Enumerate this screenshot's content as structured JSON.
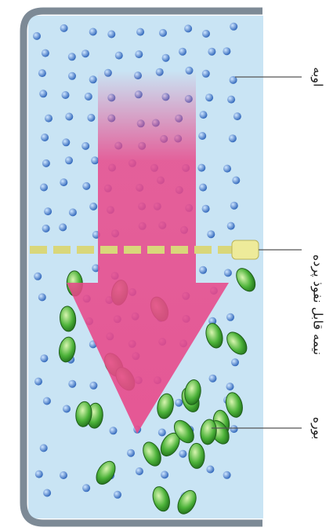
{
  "labels": {
    "water": "اوبه",
    "membrane": "نیمه قابل نفوذ پرده",
    "sugar": "بوره"
  }
}
